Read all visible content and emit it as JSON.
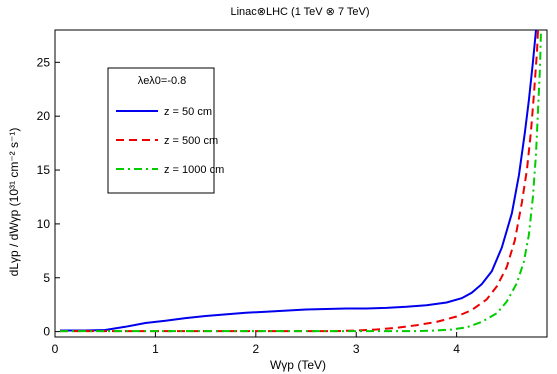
{
  "chart_data": {
    "type": "line",
    "title": "Linac⊗LHC (1 TeV ⊗ 7 TeV)",
    "xlabel": "Wγp (TeV)",
    "ylabel": "dLγp / dWγp (10³¹ cm⁻² s⁻¹)",
    "xlim": [
      0,
      4.9
    ],
    "ylim": [
      -0.5,
      28
    ],
    "x_ticks": [
      0,
      1,
      2,
      3,
      4
    ],
    "y_ticks": [
      0,
      5,
      10,
      15,
      20,
      25
    ],
    "grid": false,
    "legend_position": "top-left",
    "legend_header": "λeλ0=-0.8",
    "series": [
      {
        "name": "z = 50 cm",
        "color": "#0000ee",
        "dash": "solid",
        "points": [
          [
            0.05,
            0.1
          ],
          [
            0.3,
            0.1
          ],
          [
            0.5,
            0.15
          ],
          [
            0.7,
            0.45
          ],
          [
            0.9,
            0.8
          ],
          [
            1.1,
            1.0
          ],
          [
            1.3,
            1.25
          ],
          [
            1.5,
            1.45
          ],
          [
            1.7,
            1.6
          ],
          [
            1.9,
            1.75
          ],
          [
            2.1,
            1.85
          ],
          [
            2.3,
            1.95
          ],
          [
            2.5,
            2.05
          ],
          [
            2.7,
            2.1
          ],
          [
            2.9,
            2.15
          ],
          [
            3.1,
            2.15
          ],
          [
            3.3,
            2.2
          ],
          [
            3.5,
            2.3
          ],
          [
            3.7,
            2.45
          ],
          [
            3.9,
            2.7
          ],
          [
            4.05,
            3.1
          ],
          [
            4.15,
            3.6
          ],
          [
            4.25,
            4.4
          ],
          [
            4.35,
            5.6
          ],
          [
            4.45,
            7.8
          ],
          [
            4.55,
            11.0
          ],
          [
            4.62,
            14.5
          ],
          [
            4.68,
            18.5
          ],
          [
            4.72,
            21.5
          ],
          [
            4.76,
            25.0
          ],
          [
            4.79,
            28.0
          ]
        ]
      },
      {
        "name": "z = 500 cm",
        "color": "#ee0000",
        "dash": "dashed",
        "points": [
          [
            0.05,
            0.05
          ],
          [
            1.0,
            0.05
          ],
          [
            2.0,
            0.05
          ],
          [
            2.8,
            0.05
          ],
          [
            3.0,
            0.1
          ],
          [
            3.2,
            0.2
          ],
          [
            3.4,
            0.35
          ],
          [
            3.6,
            0.6
          ],
          [
            3.8,
            0.9
          ],
          [
            4.0,
            1.4
          ],
          [
            4.15,
            2.0
          ],
          [
            4.3,
            3.0
          ],
          [
            4.4,
            4.2
          ],
          [
            4.5,
            6.0
          ],
          [
            4.58,
            8.5
          ],
          [
            4.65,
            12.0
          ],
          [
            4.7,
            15.0
          ],
          [
            4.74,
            18.5
          ],
          [
            4.77,
            22.0
          ],
          [
            4.8,
            26.0
          ],
          [
            4.81,
            28.0
          ]
        ]
      },
      {
        "name": "z = 1000 cm",
        "color": "#00cc00",
        "dash": "dashdot",
        "points": [
          [
            0.05,
            0.05
          ],
          [
            1.0,
            0.05
          ],
          [
            2.0,
            0.05
          ],
          [
            3.0,
            0.05
          ],
          [
            3.6,
            0.05
          ],
          [
            3.8,
            0.1
          ],
          [
            3.95,
            0.2
          ],
          [
            4.1,
            0.4
          ],
          [
            4.25,
            0.9
          ],
          [
            4.4,
            1.7
          ],
          [
            4.5,
            2.8
          ],
          [
            4.6,
            4.5
          ],
          [
            4.67,
            6.5
          ],
          [
            4.72,
            9.0
          ],
          [
            4.76,
            12.5
          ],
          [
            4.79,
            16.5
          ],
          [
            4.81,
            20.5
          ],
          [
            4.83,
            24.5
          ],
          [
            4.84,
            28.0
          ]
        ]
      }
    ]
  }
}
